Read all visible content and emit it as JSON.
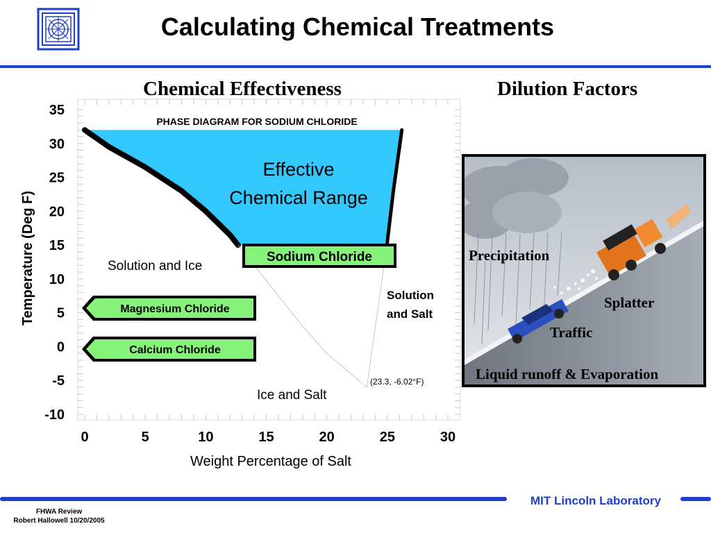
{
  "header": {
    "title": "Calculating Chemical Treatments",
    "logo": "mit-lincoln-logo"
  },
  "sections": {
    "left_heading": "Chemical Effectiveness",
    "right_heading": "Dilution Factors"
  },
  "chart_data": {
    "type": "area",
    "title": "PHASE DIAGRAM FOR SODIUM CHLORIDE",
    "xlabel": "Weight Percentage of Salt",
    "ylabel": "Temperature (Deg F)",
    "xlim": [
      0,
      30
    ],
    "ylim": [
      -10,
      35
    ],
    "x_ticks": [
      "0",
      "5",
      "10",
      "15",
      "20",
      "25",
      "30"
    ],
    "y_ticks": [
      "35",
      "30",
      "25",
      "20",
      "15",
      "10",
      "5",
      "0",
      "-5",
      "-10"
    ],
    "grid": false,
    "series": [
      {
        "values": [
          [
            0,
            32
          ],
          [
            2,
            29.5
          ],
          [
            5,
            26.5
          ],
          [
            8,
            23
          ],
          [
            10,
            20
          ],
          [
            12,
            16.5
          ],
          [
            14,
            12
          ],
          [
            16,
            7.5
          ],
          [
            18,
            3
          ],
          [
            20,
            -1
          ],
          [
            22,
            -4
          ],
          [
            23.3,
            -6.02
          ]
        ]
      },
      {
        "values": [
          [
            23.3,
            -6.02
          ],
          [
            24.5,
            8
          ],
          [
            25.5,
            23
          ],
          [
            26.2,
            32
          ]
        ]
      }
    ],
    "shaded_region": {
      "label": "Effective Chemical Range",
      "x_range": [
        0,
        26.2
      ],
      "y_range": [
        15,
        32
      ],
      "color": "#33c8fb"
    },
    "region_labels": {
      "solution_ice": "Solution and Ice",
      "solution_salt": "Solution and Salt",
      "ice_salt": "Ice and Salt"
    },
    "eutectic": {
      "label": "(23.3, -6.02°F)",
      "x": 23.3,
      "y": -6.02
    },
    "chemical_tags": [
      {
        "label": "Sodium Chloride",
        "temperature": 15,
        "color": "#86f27a"
      },
      {
        "label": "Magnesium Chloride",
        "temperature": 5,
        "color": "#86f27a"
      },
      {
        "label": "Calcium Chloride",
        "temperature": -1,
        "color": "#86f27a"
      }
    ]
  },
  "photo": {
    "labels": {
      "precipitation": "Precipitation",
      "splatter": "Splatter",
      "traffic": "Traffic",
      "runoff": "Liquid runoff & Evaporation"
    },
    "colors": {
      "sky": "#c8ced6",
      "road": "#8a9099",
      "truck": "#e2741e",
      "car": "#2a4fbf"
    }
  },
  "footer": {
    "review": "FHWA Review",
    "author": "Robert Hallowell 10/20/2005",
    "lab": "MIT Lincoln Laboratory"
  }
}
